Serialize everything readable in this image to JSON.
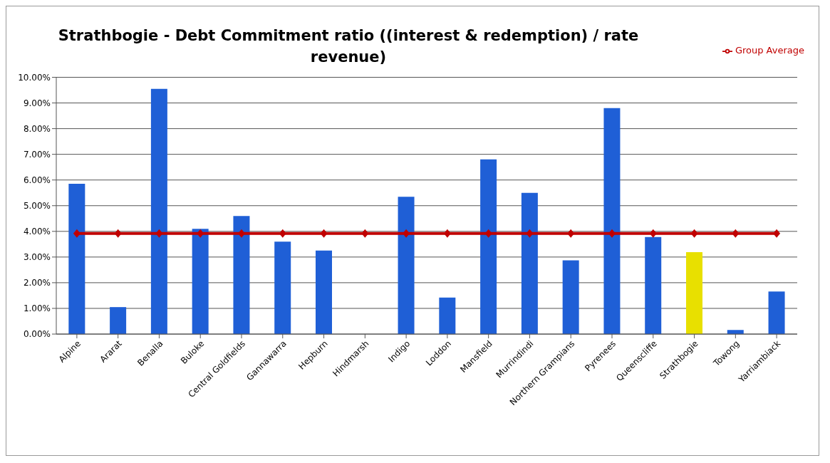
{
  "chart_data": {
    "type": "bar",
    "title": "Strathbogie - Debt Commitment ratio ((interest & redemption) / rate revenue)",
    "categories": [
      "Alpine",
      "Ararat",
      "Benalla",
      "Buloke",
      "Central Goldfields",
      "Gannawarra",
      "Hepburn",
      "Hindmarsh",
      "Indigo",
      "Loddon",
      "Mansfield",
      "Murrindindi",
      "Northern Grampians",
      "Pyrenees",
      "Queenscliffe",
      "Strathbogie",
      "Towong",
      "Yarriambiack"
    ],
    "series": [
      {
        "colors": [
          "#1f5fd6",
          "#1f5fd6",
          "#1f5fd6",
          "#1f5fd6",
          "#1f5fd6",
          "#1f5fd6",
          "#1f5fd6",
          "#1f5fd6",
          "#1f5fd6",
          "#1f5fd6",
          "#1f5fd6",
          "#1f5fd6",
          "#1f5fd6",
          "#1f5fd6",
          "#1f5fd6",
          "#e8e000",
          "#1f5fd6",
          "#1f5fd6"
        ],
        "values": [
          5.85,
          1.05,
          9.55,
          4.1,
          4.6,
          3.6,
          3.25,
          0,
          5.35,
          1.42,
          6.8,
          5.5,
          2.87,
          8.8,
          3.78,
          3.19,
          0.16,
          1.66
        ]
      },
      {
        "type": "line",
        "name": "Group Average",
        "color": "#c00000",
        "marker": "diamond",
        "values": [
          3.92,
          3.92,
          3.92,
          3.92,
          3.92,
          3.92,
          3.92,
          3.92,
          3.92,
          3.92,
          3.92,
          3.92,
          3.92,
          3.92,
          3.92,
          3.92,
          3.92,
          3.92
        ]
      }
    ],
    "ylim": [
      0,
      10
    ],
    "yticks": [
      {
        "value": 0,
        "label": "0.00%"
      },
      {
        "value": 1,
        "label": "1.00%"
      },
      {
        "value": 2,
        "label": "2.00%"
      },
      {
        "value": 3,
        "label": "3.00%"
      },
      {
        "value": 4,
        "label": "4.00%"
      },
      {
        "value": 5,
        "label": "5.00%"
      },
      {
        "value": 6,
        "label": "6.00%"
      },
      {
        "value": 7,
        "label": "7.00%"
      },
      {
        "value": 8,
        "label": "8.00%"
      },
      {
        "value": 9,
        "label": "9.00%"
      },
      {
        "value": 10,
        "label": "10.00%"
      }
    ],
    "grid": "y",
    "legend": "top right"
  }
}
